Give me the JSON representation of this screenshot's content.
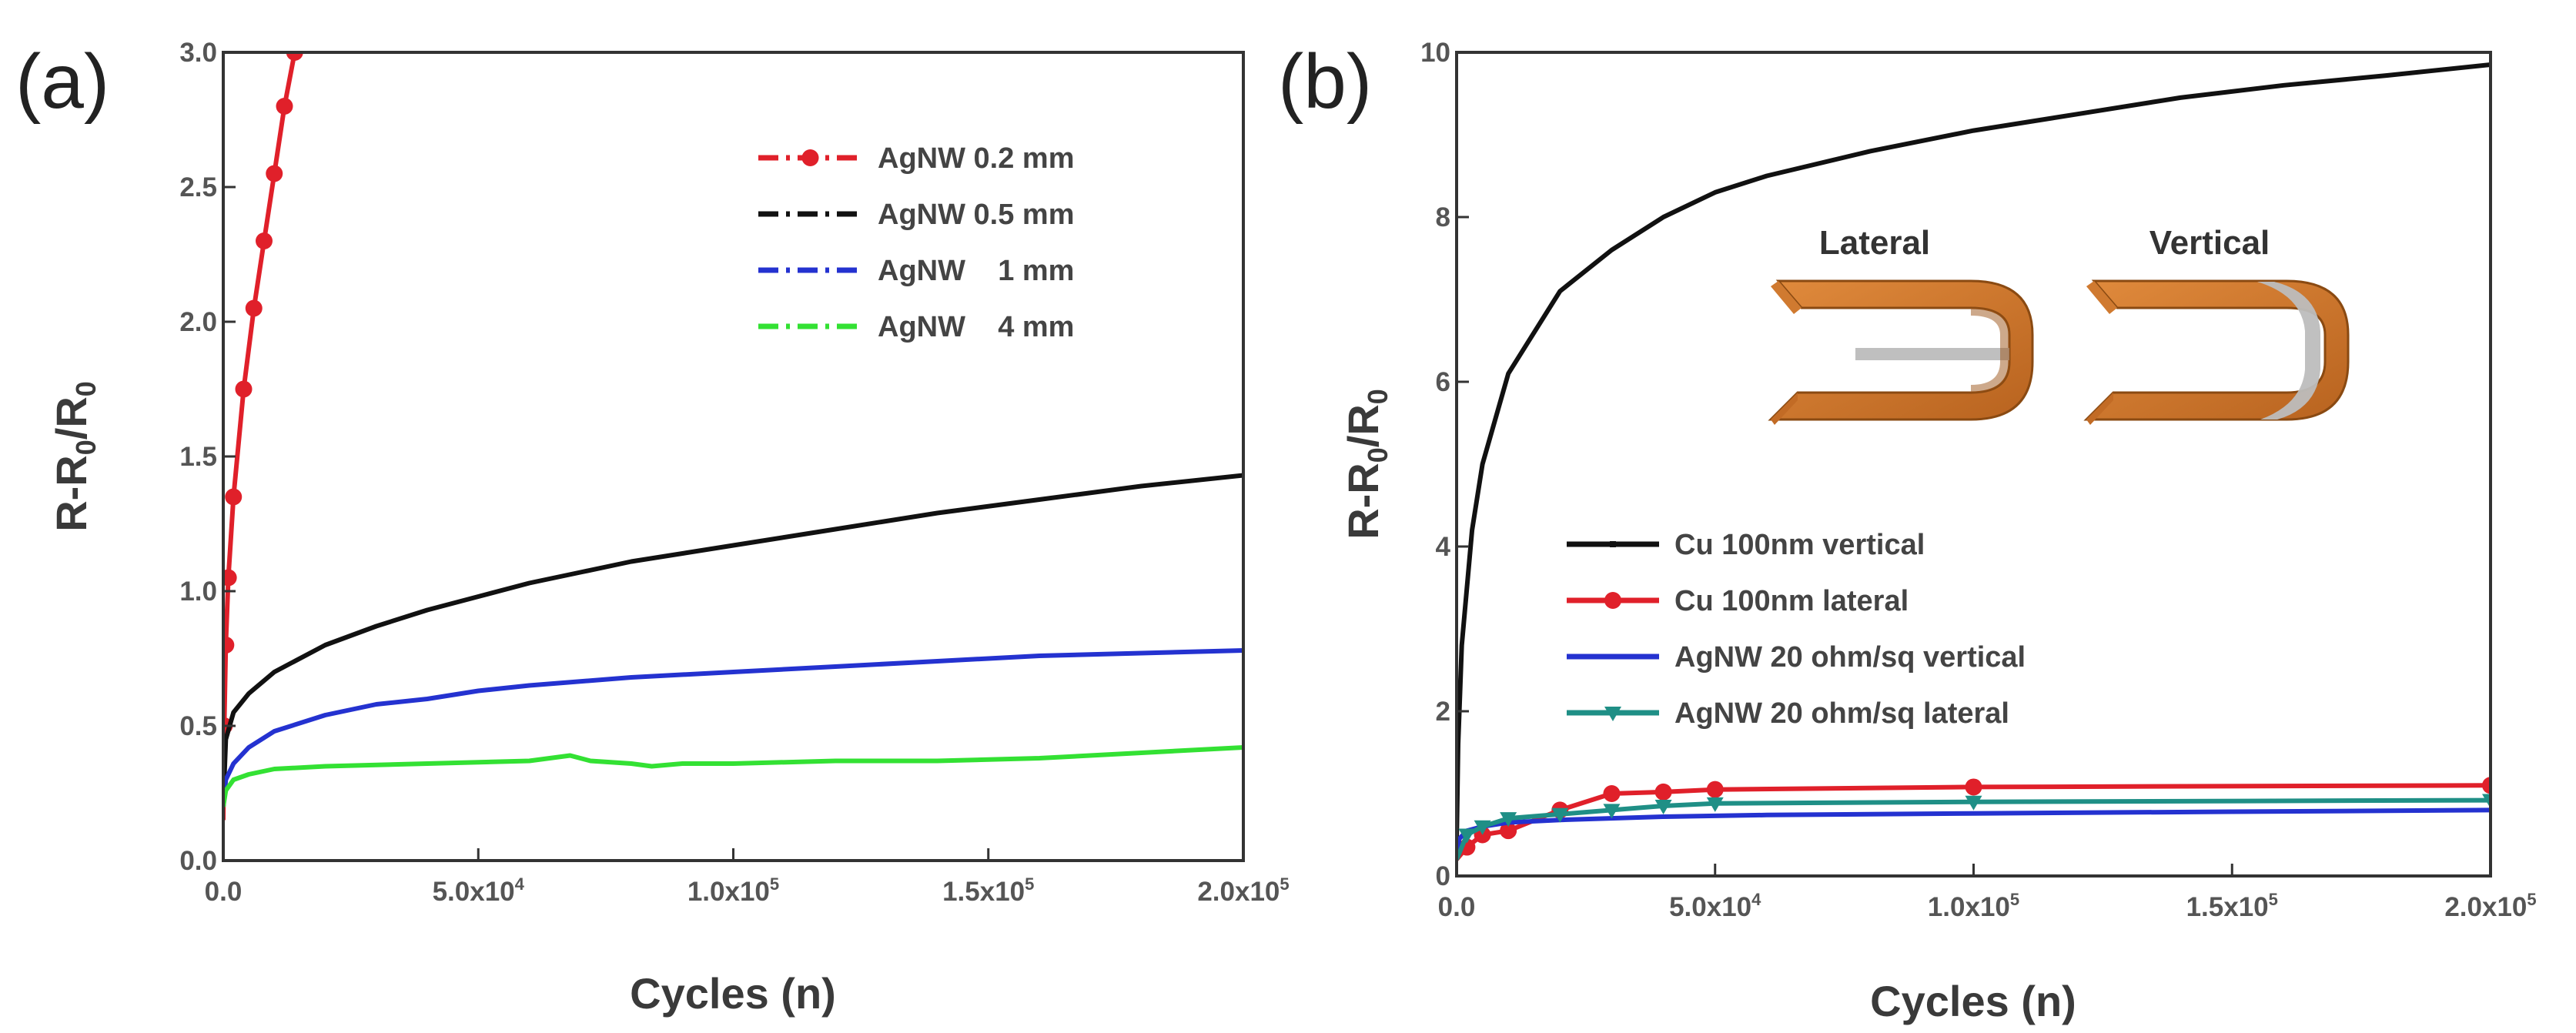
{
  "chart_data": [
    {
      "type": "line",
      "panel_label": "(a)",
      "xlabel": "Cycles (n)",
      "ylabel": {
        "main": "R-R",
        "sub1": "0",
        "mid": "/R",
        "sub2": "0"
      },
      "xlim": [
        0,
        200000
      ],
      "ylim": [
        0,
        3.0
      ],
      "xticks": [
        {
          "value": 0,
          "mantissa": "0.0",
          "exp": ""
        },
        {
          "value": 50000,
          "mantissa": "5.0x10",
          "exp": "4"
        },
        {
          "value": 100000,
          "mantissa": "1.0x10",
          "exp": "5"
        },
        {
          "value": 150000,
          "mantissa": "1.5x10",
          "exp": "5"
        },
        {
          "value": 200000,
          "mantissa": "2.0x10",
          "exp": "5"
        }
      ],
      "yticks": [
        {
          "value": 0.0,
          "label": "0.0"
        },
        {
          "value": 0.5,
          "label": "0.5"
        },
        {
          "value": 1.0,
          "label": "1.0"
        },
        {
          "value": 1.5,
          "label": "1.5"
        },
        {
          "value": 2.0,
          "label": "2.0"
        },
        {
          "value": 2.5,
          "label": "2.5"
        },
        {
          "value": 3.0,
          "label": "3.0"
        }
      ],
      "legend_position": "top-right",
      "series": [
        {
          "name": "AgNW 0.2 mm",
          "color": "#e0202a",
          "style": "dash-dot",
          "marker": "circle",
          "x": [
            0,
            200,
            500,
            1000,
            2000,
            4000,
            6000,
            8000,
            10000,
            12000,
            14000
          ],
          "y": [
            0.15,
            0.5,
            0.8,
            1.05,
            1.35,
            1.75,
            2.05,
            2.3,
            2.55,
            2.8,
            3.0
          ]
        },
        {
          "name": "AgNW 0.5 mm",
          "color": "#111111",
          "style": "dash-dot",
          "marker": "none",
          "x": [
            0,
            500,
            2000,
            5000,
            10000,
            20000,
            30000,
            40000,
            50000,
            60000,
            70000,
            80000,
            100000,
            120000,
            140000,
            160000,
            180000,
            200000
          ],
          "y": [
            0.2,
            0.45,
            0.55,
            0.62,
            0.7,
            0.8,
            0.87,
            0.93,
            0.98,
            1.03,
            1.07,
            1.11,
            1.17,
            1.23,
            1.29,
            1.34,
            1.39,
            1.43
          ]
        },
        {
          "name": "AgNW    1 mm",
          "color": "#2432d0",
          "style": "dash-dot",
          "marker": "none",
          "x": [
            0,
            500,
            2000,
            5000,
            10000,
            20000,
            30000,
            40000,
            50000,
            60000,
            80000,
            100000,
            120000,
            140000,
            160000,
            180000,
            200000
          ],
          "y": [
            0.2,
            0.3,
            0.36,
            0.42,
            0.48,
            0.54,
            0.58,
            0.6,
            0.63,
            0.65,
            0.68,
            0.7,
            0.72,
            0.74,
            0.76,
            0.77,
            0.78
          ]
        },
        {
          "name": "AgNW    4 mm",
          "color": "#33e133",
          "style": "dash-dot",
          "marker": "none",
          "x": [
            0,
            500,
            2000,
            5000,
            10000,
            20000,
            40000,
            60000,
            68000,
            72000,
            80000,
            84000,
            90000,
            100000,
            120000,
            140000,
            160000,
            180000,
            200000
          ],
          "y": [
            0.2,
            0.26,
            0.3,
            0.32,
            0.34,
            0.35,
            0.36,
            0.37,
            0.39,
            0.37,
            0.36,
            0.35,
            0.36,
            0.36,
            0.37,
            0.37,
            0.38,
            0.4,
            0.42
          ]
        }
      ]
    },
    {
      "type": "line",
      "panel_label": "(b)",
      "xlabel": "Cycles (n)",
      "ylabel": {
        "main": "R-R",
        "sub1": "0",
        "mid": "/R",
        "sub2": "0"
      },
      "xlim": [
        0,
        200000
      ],
      "ylim": [
        0,
        10
      ],
      "xticks": [
        {
          "value": 0,
          "mantissa": "0.0",
          "exp": ""
        },
        {
          "value": 50000,
          "mantissa": "5.0x10",
          "exp": "4"
        },
        {
          "value": 100000,
          "mantissa": "1.0x10",
          "exp": "5"
        },
        {
          "value": 150000,
          "mantissa": "1.5x10",
          "exp": "5"
        },
        {
          "value": 200000,
          "mantissa": "2.0x10",
          "exp": "5"
        }
      ],
      "yticks": [
        {
          "value": 0,
          "label": "0"
        },
        {
          "value": 2,
          "label": "2"
        },
        {
          "value": 4,
          "label": "4"
        },
        {
          "value": 6,
          "label": "6"
        },
        {
          "value": 8,
          "label": "8"
        },
        {
          "value": 10,
          "label": "10"
        }
      ],
      "legend_position": "lower-left",
      "inset_labels": [
        "Lateral",
        "Vertical"
      ],
      "series": [
        {
          "name": "Cu 100nm vertical",
          "color": "#111111",
          "style": "solid",
          "marker": "small-square",
          "x": [
            0,
            300,
            1000,
            3000,
            5000,
            10000,
            20000,
            30000,
            40000,
            50000,
            60000,
            80000,
            100000,
            120000,
            140000,
            160000,
            180000,
            200000
          ],
          "y": [
            0.4,
            1.6,
            2.8,
            4.2,
            5.0,
            6.1,
            7.1,
            7.6,
            8.0,
            8.3,
            8.5,
            8.8,
            9.05,
            9.25,
            9.45,
            9.6,
            9.72,
            9.85
          ]
        },
        {
          "name": "Cu 100nm lateral",
          "color": "#e0202a",
          "style": "solid",
          "marker": "circle",
          "x": [
            0,
            2000,
            5000,
            10000,
            20000,
            30000,
            40000,
            50000,
            100000,
            200000
          ],
          "y": [
            0.2,
            0.35,
            0.5,
            0.55,
            0.8,
            1.0,
            1.02,
            1.05,
            1.08,
            1.1
          ]
        },
        {
          "name": "AgNW 20 ohm/sq vertical",
          "color": "#2432d0",
          "style": "solid",
          "marker": "none",
          "x": [
            0,
            500,
            2000,
            5000,
            10000,
            20000,
            40000,
            60000,
            100000,
            150000,
            200000
          ],
          "y": [
            0.2,
            0.45,
            0.55,
            0.6,
            0.65,
            0.68,
            0.72,
            0.74,
            0.76,
            0.78,
            0.8
          ]
        },
        {
          "name": "AgNW 20 ohm/sq lateral",
          "color": "#1f8f86",
          "style": "solid",
          "marker": "triangle-down",
          "x": [
            0,
            2000,
            5000,
            10000,
            20000,
            30000,
            40000,
            50000,
            100000,
            200000
          ],
          "y": [
            0.2,
            0.5,
            0.6,
            0.7,
            0.75,
            0.8,
            0.85,
            0.88,
            0.9,
            0.92
          ]
        }
      ]
    }
  ]
}
